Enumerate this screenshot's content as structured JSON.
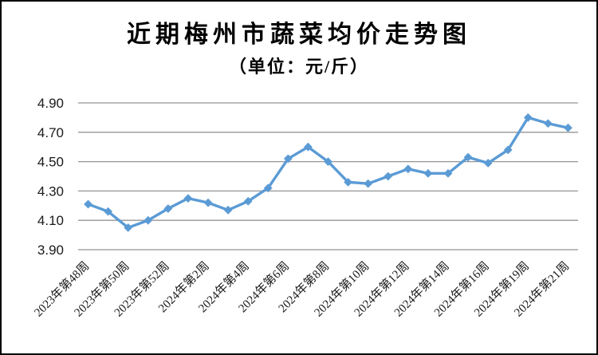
{
  "colors": {
    "line": "#5B9BD5",
    "marker": "#5B9BD5",
    "gridline": "#959595",
    "text": "#1a1a1a",
    "background": "#FFFFFF",
    "frame_border": "#000000"
  },
  "chart_data": {
    "type": "line",
    "title": "近期梅州市蔬菜均价走势图",
    "subtitle": "（单位：元/斤）",
    "unit": "元/斤",
    "legend": "none",
    "grid": "horizontal",
    "marker_shape": "diamond",
    "x_tick_labels": [
      "2023年第48周",
      "2023年第50周",
      "2023年第52周",
      "2024年第2周",
      "2024年第4周",
      "2024年第6周",
      "2024年第8周",
      "2024年第10周",
      "2024年第12周",
      "2024年第14周",
      "2024年第16周",
      "2024年第19周",
      "2024年第21周"
    ],
    "label_every_n_points": 2,
    "values": [
      4.21,
      4.16,
      4.05,
      4.1,
      4.18,
      4.25,
      4.22,
      4.17,
      4.23,
      4.32,
      4.52,
      4.6,
      4.5,
      4.36,
      4.35,
      4.4,
      4.45,
      4.42,
      4.42,
      4.53,
      4.49,
      4.58,
      4.8,
      4.76,
      4.73
    ],
    "y_tick_labels": [
      "3.90",
      "4.10",
      "4.30",
      "4.50",
      "4.70",
      "4.90"
    ],
    "ylim": [
      3.9,
      4.9
    ]
  }
}
